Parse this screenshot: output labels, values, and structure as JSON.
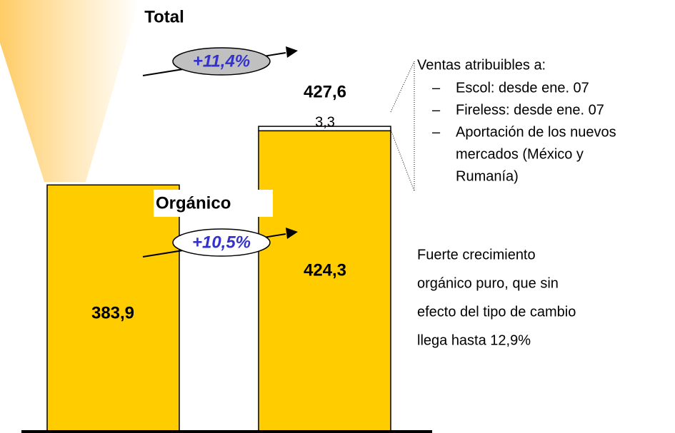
{
  "chart_data": {
    "type": "bar",
    "categories": [
      null,
      null
    ],
    "series": [
      {
        "values": [
          383.9,
          424.3
        ],
        "value_labels": [
          "383,9",
          "424,3"
        ],
        "color": "#ffcc00"
      },
      {
        "values": [
          null,
          3.3
        ],
        "value_labels": [
          null,
          "3,3"
        ],
        "color": "#ffffff"
      }
    ],
    "total": {
      "value": 427.6,
      "label": "427,6"
    },
    "ylim": [
      200,
      450
    ],
    "total_title": "Total",
    "total_growth": "+11,4%",
    "organic_title": "Orgánico",
    "organic_growth": "+10,5%",
    "note_heading": "Ventas atribuibles a:",
    "note_items": [
      "Escol: desde ene. 07",
      "Fireless: desde ene. 07",
      "Aportación de los nuevos",
      "mercados  (México y",
      "Rumanía)"
    ],
    "comment_lines": [
      "Fuerte crecimiento",
      "orgánico puro, que sin",
      "efecto del tipo de cambio",
      "llega hasta 12,9%"
    ]
  }
}
